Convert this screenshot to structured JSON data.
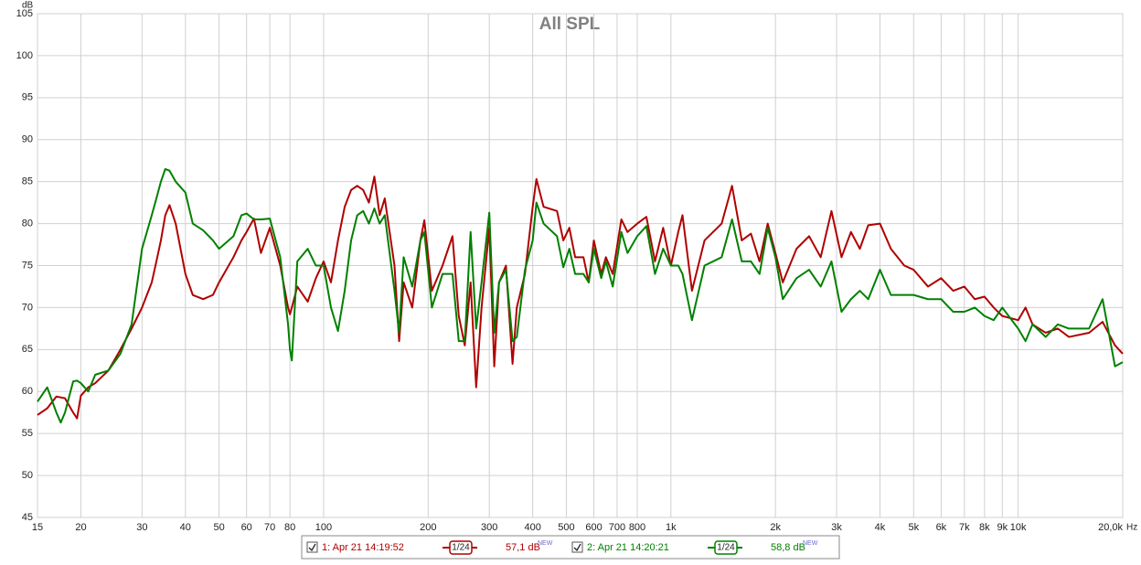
{
  "chart_data": {
    "type": "line",
    "title": "All SPL",
    "y_label": "dB",
    "x_label": "Hz",
    "log_x": true,
    "grid": true,
    "x": [
      15,
      16,
      17,
      17.5,
      18,
      19,
      19.5,
      20,
      21,
      22,
      24,
      26,
      28,
      30,
      32,
      33,
      34,
      35,
      36,
      37.5,
      40,
      42,
      45,
      48,
      50,
      55,
      58,
      60,
      63,
      66,
      70,
      75,
      79,
      80,
      81,
      84,
      90,
      95,
      100,
      105,
      110,
      115,
      120,
      125,
      130,
      135,
      140,
      145,
      150,
      160,
      165,
      170,
      180,
      190,
      195,
      205,
      220,
      235,
      245,
      255,
      265,
      275,
      285,
      300,
      310,
      320,
      335,
      350,
      360,
      380,
      400,
      410,
      430,
      470,
      490,
      510,
      530,
      560,
      580,
      600,
      630,
      650,
      680,
      720,
      750,
      800,
      850,
      900,
      950,
      1000,
      1050,
      1080,
      1150,
      1250,
      1400,
      1500,
      1600,
      1700,
      1800,
      1900,
      2000,
      2100,
      2300,
      2500,
      2700,
      2900,
      3100,
      3300,
      3500,
      3700,
      4000,
      4300,
      4700,
      5000,
      5500,
      6000,
      6500,
      7000,
      7500,
      8000,
      8500,
      9000,
      10000,
      10500,
      11000,
      12000,
      13000,
      14000,
      16000,
      17500,
      19000,
      20000
    ],
    "series": [
      {
        "name": "1: Apr 21 14:19:52",
        "color": "#b00000",
        "smoothing": "1/24",
        "level": "57,1 dB",
        "level_tag": "NEW",
        "values": [
          57.2,
          58,
          59.4,
          59.3,
          59.2,
          57.5,
          56.8,
          59.5,
          60.5,
          61,
          62.5,
          65,
          67.5,
          70,
          73,
          75.5,
          78,
          81,
          82.2,
          80,
          74,
          71.5,
          71,
          71.5,
          73,
          76,
          78,
          79,
          80.6,
          76.5,
          79.5,
          75,
          70,
          69.2,
          70,
          72.5,
          70.7,
          73.5,
          75.5,
          73,
          78,
          82,
          84,
          84.5,
          84,
          82.5,
          85.6,
          81,
          83,
          75,
          66,
          73,
          70,
          78,
          80.4,
          72,
          75,
          78.5,
          69,
          65.5,
          73,
          60.5,
          70,
          79.5,
          63,
          73,
          75,
          63.3,
          70,
          74,
          82,
          85.3,
          82,
          81.5,
          78,
          79.5,
          76,
          76,
          73,
          78,
          74,
          76,
          74,
          80.5,
          79,
          80,
          80.8,
          75.5,
          79.5,
          75,
          79,
          81,
          72,
          78,
          80,
          84.5,
          78,
          78.8,
          75.5,
          80,
          76.5,
          73,
          77,
          78.5,
          76,
          81.5,
          76,
          79,
          77,
          79.8,
          80,
          77,
          75,
          74.5,
          72.5,
          73.5,
          72,
          72.5,
          71,
          71.3,
          70,
          69,
          68.5,
          70,
          68,
          67,
          67.5,
          66.5,
          67,
          68.3,
          65.5,
          64.5
        ]
      },
      {
        "name": "2: Apr 21 14:20:21",
        "color": "#008000",
        "smoothing": "1/24",
        "level": "58,8 dB",
        "level_tag": "NEW",
        "values": [
          58.8,
          60.5,
          57.5,
          56.3,
          57.5,
          61.2,
          61.3,
          61,
          60,
          62,
          62.5,
          64.5,
          68,
          77,
          81,
          83,
          85,
          86.5,
          86.3,
          85,
          83.7,
          80,
          79.2,
          78,
          77,
          78.5,
          81,
          81.2,
          80.5,
          80.5,
          80.6,
          76,
          68,
          65,
          63.7,
          75.5,
          77,
          75,
          75,
          70,
          67.2,
          72,
          78,
          81,
          81.5,
          80,
          81.8,
          80,
          81,
          72,
          67,
          76,
          72.5,
          78,
          79,
          70,
          74,
          74,
          66,
          66,
          79,
          67.5,
          73,
          81.3,
          67,
          73,
          74.5,
          66,
          66.5,
          74.5,
          78,
          82.5,
          80,
          78.5,
          74.8,
          77,
          74,
          74,
          73,
          77,
          73.5,
          75.5,
          72.5,
          79,
          76.5,
          78.5,
          79.7,
          74,
          77,
          75,
          75,
          74,
          68.5,
          75,
          76,
          80.5,
          75.5,
          75.5,
          74,
          79.5,
          76,
          71,
          73.5,
          74.5,
          72.5,
          75.5,
          69.5,
          71,
          72,
          71,
          74.5,
          71.5,
          71.5,
          71.5,
          71,
          71,
          69.5,
          69.5,
          70,
          69,
          68.5,
          70,
          67.5,
          66,
          68,
          66.5,
          68,
          67.5,
          67.5,
          71,
          63,
          63.5
        ]
      }
    ],
    "xlim": [
      15,
      20000
    ],
    "ylim": [
      45,
      105
    ],
    "xticks": [
      15,
      20,
      30,
      40,
      50,
      60,
      70,
      80,
      100,
      200,
      300,
      400,
      500,
      600,
      700,
      800,
      {
        "value": 1000,
        "label": "1k"
      },
      {
        "value": 2000,
        "label": "2k"
      },
      {
        "value": 3000,
        "label": "3k"
      },
      {
        "value": 4000,
        "label": "4k"
      },
      {
        "value": 5000,
        "label": "5k"
      },
      {
        "value": 6000,
        "label": "6k"
      },
      {
        "value": 7000,
        "label": "7k"
      },
      {
        "value": 8000,
        "label": "8k"
      },
      {
        "value": 9000,
        "label": "9k"
      },
      {
        "value": 10000,
        "label": "10k"
      },
      {
        "value": 20000,
        "label": "20,0k"
      }
    ],
    "yticks": [
      45,
      50,
      55,
      60,
      65,
      70,
      75,
      80,
      85,
      90,
      95,
      100,
      105
    ]
  }
}
